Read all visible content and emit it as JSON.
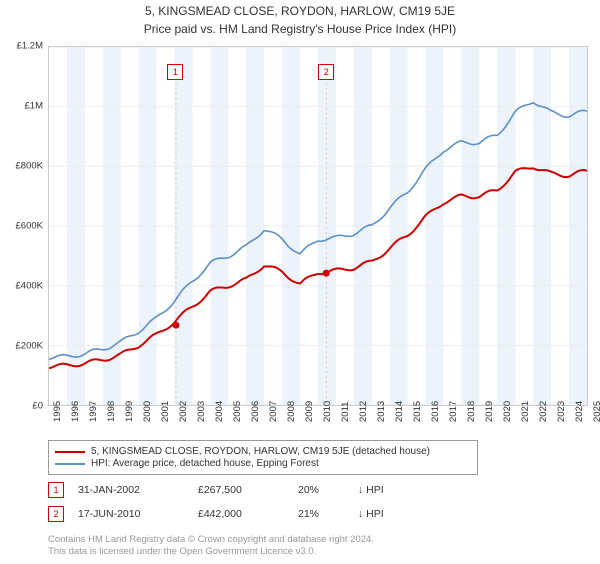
{
  "title": "5, KINGSMEAD CLOSE, ROYDON, HARLOW, CM19 5JE",
  "subtitle": "Price paid vs. HM Land Registry's House Price Index (HPI)",
  "chart": {
    "type": "line",
    "background_color": "#ffffff",
    "grid_color": "#eeeeee",
    "border_color": "#cccccc",
    "x_years": [
      1995,
      1996,
      1997,
      1998,
      1999,
      2000,
      2001,
      2002,
      2003,
      2004,
      2005,
      2006,
      2007,
      2008,
      2009,
      2010,
      2011,
      2012,
      2013,
      2014,
      2015,
      2016,
      2017,
      2018,
      2019,
      2020,
      2021,
      2022,
      2023,
      2024,
      2025
    ],
    "y_ticks": [
      0,
      200000,
      400000,
      600000,
      800000,
      1000000,
      1200000
    ],
    "y_tick_labels": [
      "£0",
      "£200K",
      "£400K",
      "£600K",
      "£800K",
      "£1M",
      "£1.2M"
    ],
    "ylim": [
      0,
      1200000
    ],
    "label_fontsize": 9.5,
    "label_color": "#333333",
    "alt_band_color": "#ecf3fa",
    "series": [
      {
        "name": "property",
        "color": "#cc0000",
        "line_width": 2,
        "values_by_year": {
          "1995": 130000,
          "1996": 132000,
          "1997": 140000,
          "1998": 152000,
          "1999": 168000,
          "2000": 200000,
          "2001": 235000,
          "2002": 280000,
          "2003": 330000,
          "2004": 380000,
          "2005": 400000,
          "2006": 420000,
          "2007": 470000,
          "2008": 445000,
          "2009": 405000,
          "2010": 445000,
          "2011": 450000,
          "2012": 460000,
          "2013": 480000,
          "2014": 525000,
          "2015": 570000,
          "2016": 630000,
          "2017": 680000,
          "2018": 700000,
          "2019": 700000,
          "2020": 720000,
          "2021": 780000,
          "2022": 800000,
          "2023": 775000,
          "2024": 770000,
          "2025": 785000
        }
      },
      {
        "name": "hpi",
        "color": "#5b8fc7",
        "line_width": 1.6,
        "values_by_year": {
          "1995": 160000,
          "1996": 162000,
          "1997": 172000,
          "1998": 188000,
          "1999": 210000,
          "2000": 248000,
          "2001": 290000,
          "2002": 350000,
          "2003": 415000,
          "2004": 475000,
          "2005": 500000,
          "2006": 530000,
          "2007": 590000,
          "2008": 555000,
          "2009": 505000,
          "2010": 555000,
          "2011": 560000,
          "2012": 575000,
          "2013": 600000,
          "2014": 660000,
          "2015": 715000,
          "2016": 790000,
          "2017": 855000,
          "2018": 880000,
          "2019": 880000,
          "2020": 905000,
          "2021": 980000,
          "2022": 1020000,
          "2023": 980000,
          "2024": 970000,
          "2025": 985000
        }
      }
    ],
    "sale_points": [
      {
        "year": 2002.08,
        "value": 267500,
        "color": "#cc0000",
        "radius": 3.5
      },
      {
        "year": 2010.46,
        "value": 442000,
        "color": "#cc0000",
        "radius": 3.5
      }
    ],
    "annotations": [
      {
        "label": "1",
        "year": 2002.08,
        "box_color": "#cc0000"
      },
      {
        "label": "2",
        "year": 2010.46,
        "box_color": "#cc0000"
      }
    ]
  },
  "legend": {
    "items": [
      {
        "color": "#cc0000",
        "label": "5, KINGSMEAD CLOSE, ROYDON, HARLOW, CM19 5JE (detached house)"
      },
      {
        "color": "#5b8fc7",
        "label": "HPI: Average price, detached house, Epping Forest"
      }
    ]
  },
  "sales": [
    {
      "idx": "1",
      "date": "31-JAN-2002",
      "price": "£267,500",
      "pct": "20%",
      "dir": "↓ HPI"
    },
    {
      "idx": "2",
      "date": "17-JUN-2010",
      "price": "£442,000",
      "pct": "21%",
      "dir": "↓ HPI"
    }
  ],
  "footer_line1": "Contains HM Land Registry data © Crown copyright and database right 2024.",
  "footer_line2": "This data is licensed under the Open Government Licence v3.0."
}
